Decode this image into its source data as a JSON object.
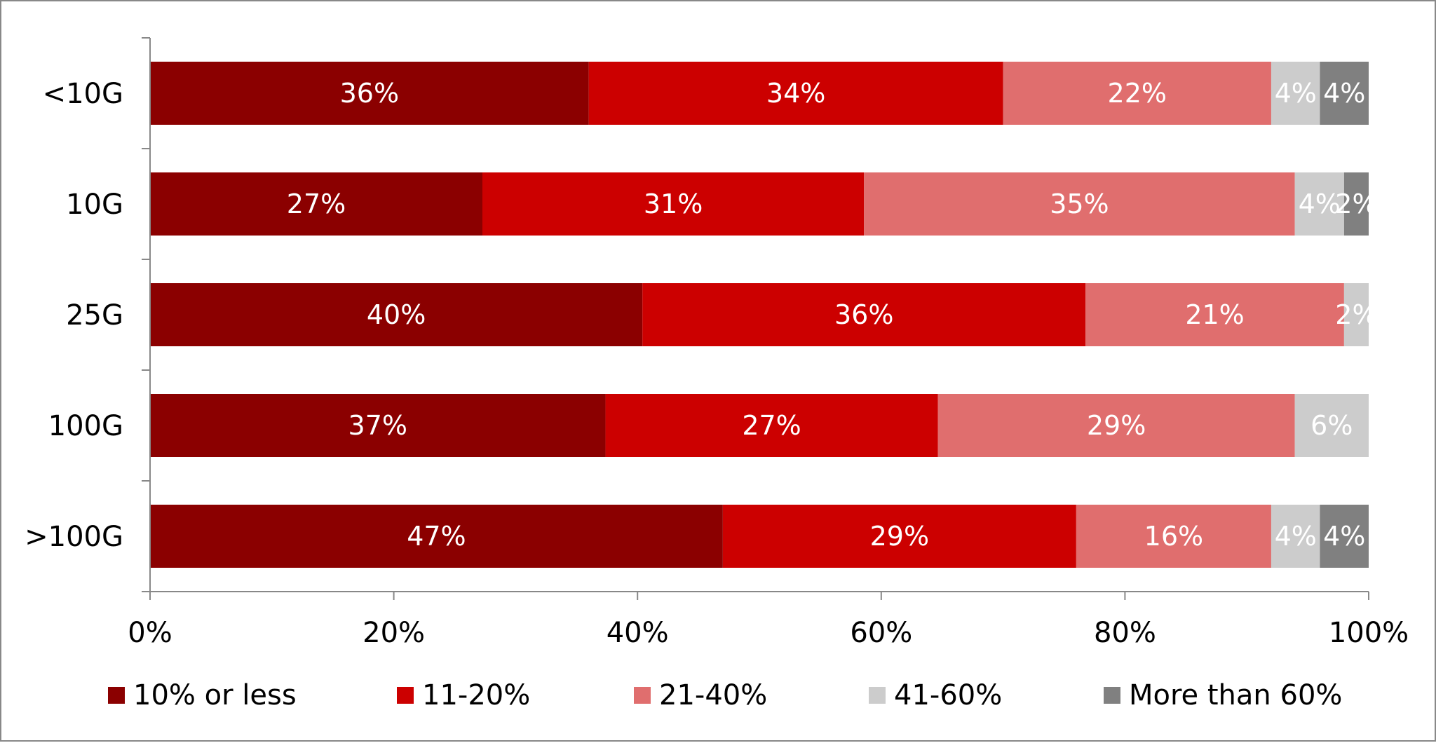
{
  "chart_data": {
    "type": "bar",
    "orientation": "horizontal",
    "stacked": true,
    "normalized": true,
    "title": "",
    "xlabel": "",
    "ylabel": "",
    "xlim": [
      0,
      100
    ],
    "x_tick_labels": [
      "0%",
      "20%",
      "40%",
      "60%",
      "80%",
      "100%"
    ],
    "categories": [
      "<10G",
      "10G",
      "25G",
      "100G",
      ">100G"
    ],
    "series": [
      {
        "name": "10% or less",
        "color": "#8b0000",
        "values": [
          36,
          27,
          40,
          37,
          47
        ],
        "labels": [
          "36%",
          "27%",
          "40%",
          "37%",
          "47%"
        ]
      },
      {
        "name": "11-20%",
        "color": "#cc0000",
        "values": [
          34,
          31,
          36,
          27,
          29
        ],
        "labels": [
          "34%",
          "31%",
          "36%",
          "27%",
          "29%"
        ]
      },
      {
        "name": "21-40%",
        "color": "#e06e6e",
        "values": [
          22,
          35,
          21,
          29,
          16
        ],
        "labels": [
          "22%",
          "35%",
          "21%",
          "29%",
          "16%"
        ]
      },
      {
        "name": "41-60%",
        "color": "#cccccc",
        "values": [
          4,
          4,
          2,
          6,
          4
        ],
        "labels": [
          "4%",
          "4%",
          "2%",
          "6%",
          "4%"
        ]
      },
      {
        "name": "More than 60%",
        "color": "#808080",
        "values": [
          4,
          2,
          0,
          0,
          4
        ],
        "labels": [
          "4%",
          "2%",
          "",
          "",
          "4%"
        ]
      }
    ],
    "grid": false,
    "legend": "bottom"
  }
}
